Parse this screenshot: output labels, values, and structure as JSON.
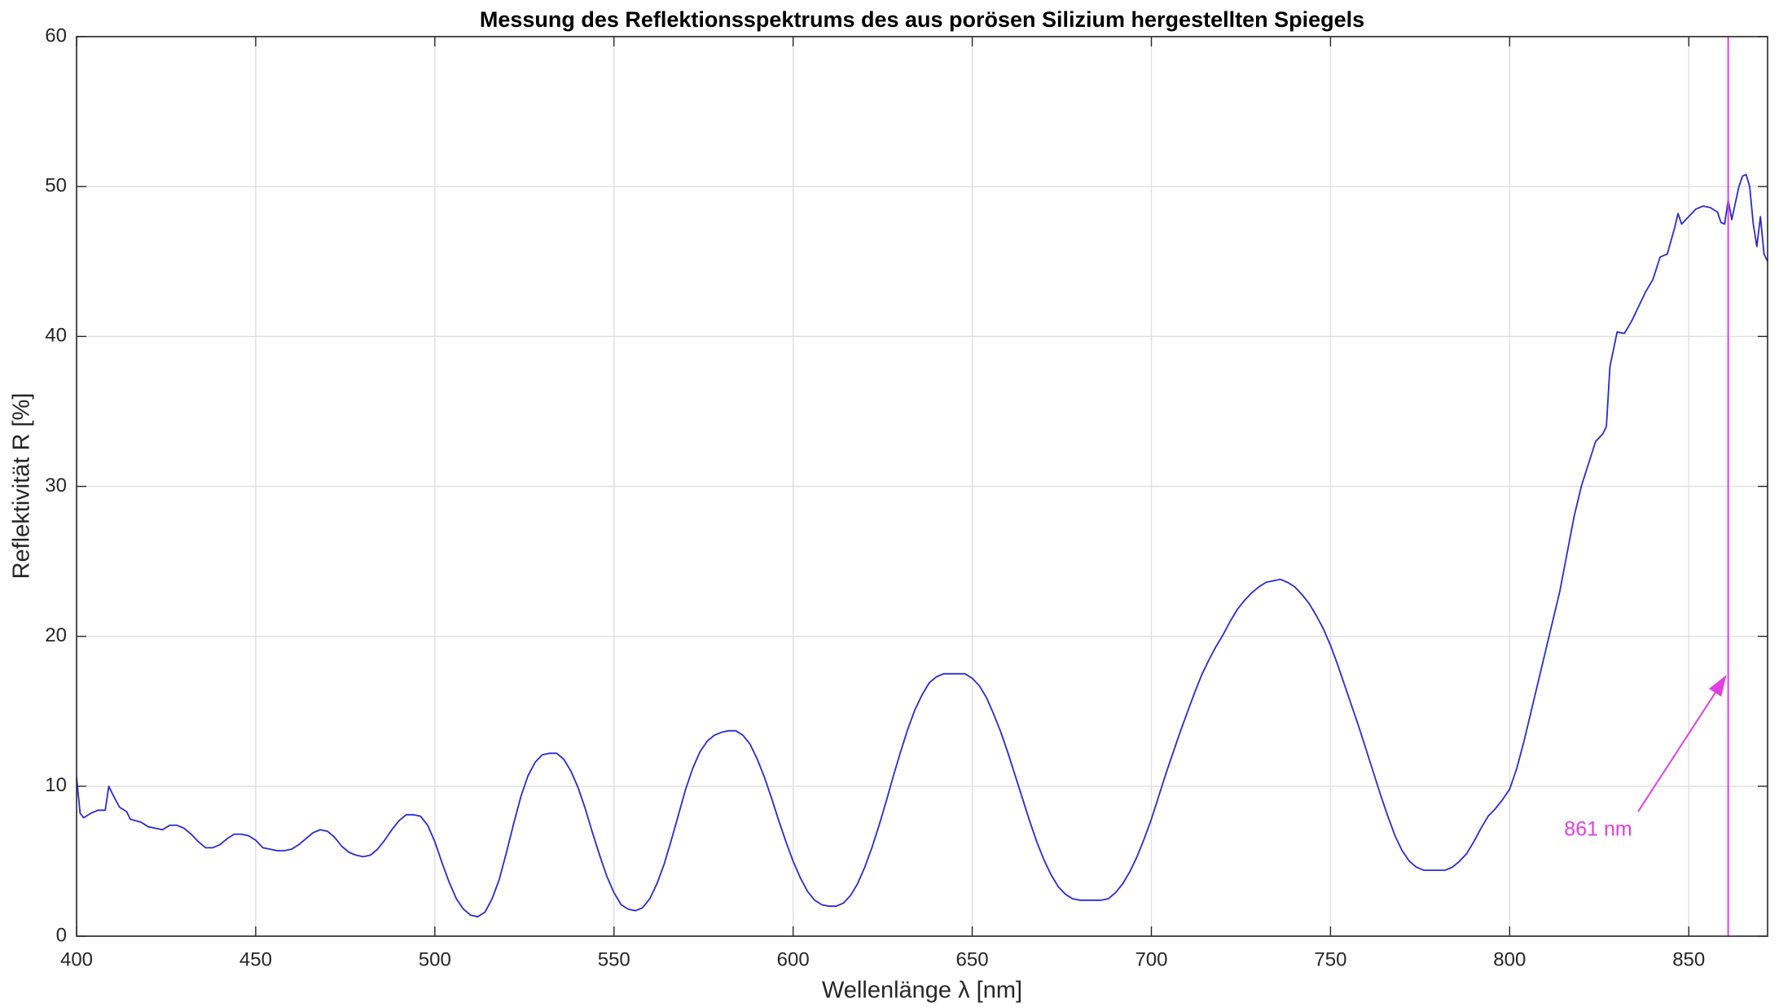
{
  "chart_data": {
    "type": "line",
    "title": "Messung des Reflektionsspektrums des aus porösen Silizium hergestellten Spiegels",
    "x_label": "Wellenlänge λ [nm]",
    "y_label": "Reflektivität R [%]",
    "x": [
      400,
      401,
      402,
      404,
      406,
      408,
      409,
      410,
      412,
      414,
      415,
      418,
      420,
      422,
      424,
      426,
      428,
      430,
      432,
      434,
      436,
      438,
      440,
      442,
      444,
      446,
      448,
      450,
      452,
      454,
      456,
      458,
      460,
      462,
      464,
      466,
      468,
      470,
      472,
      474,
      476,
      478,
      480,
      482,
      484,
      486,
      488,
      490,
      492,
      494,
      496,
      498,
      500,
      502,
      504,
      506,
      508,
      510,
      512,
      514,
      516,
      518,
      520,
      522,
      524,
      526,
      528,
      530,
      532,
      534,
      536,
      538,
      540,
      542,
      544,
      546,
      548,
      550,
      552,
      554,
      556,
      558,
      560,
      562,
      564,
      566,
      568,
      570,
      572,
      574,
      576,
      578,
      580,
      582,
      584,
      586,
      588,
      590,
      592,
      594,
      596,
      598,
      600,
      602,
      604,
      606,
      608,
      610,
      612,
      614,
      616,
      618,
      620,
      622,
      624,
      626,
      628,
      630,
      632,
      634,
      636,
      638,
      640,
      642,
      644,
      646,
      648,
      650,
      652,
      654,
      656,
      658,
      660,
      662,
      664,
      666,
      668,
      670,
      672,
      674,
      676,
      678,
      680,
      682,
      684,
      686,
      688,
      690,
      692,
      694,
      696,
      698,
      700,
      702,
      704,
      706,
      708,
      710,
      712,
      714,
      716,
      718,
      720,
      722,
      724,
      726,
      728,
      730,
      732,
      734,
      736,
      738,
      740,
      742,
      744,
      746,
      748,
      750,
      752,
      754,
      756,
      758,
      760,
      762,
      764,
      766,
      768,
      770,
      772,
      774,
      776,
      778,
      780,
      782,
      784,
      786,
      788,
      790,
      792,
      794,
      796,
      798,
      800,
      802,
      804,
      806,
      808,
      810,
      812,
      814,
      816,
      818,
      820,
      822,
      824,
      826,
      827,
      828,
      830,
      832,
      834,
      836,
      838,
      840,
      842,
      844,
      846,
      847,
      848,
      850,
      852,
      854,
      856,
      858,
      859,
      860,
      861,
      862,
      864,
      865,
      866,
      867,
      868,
      869,
      870,
      871,
      872
    ],
    "series": [
      {
        "name": "R",
        "color": "#2a2ad0",
        "values": [
          10.6,
          8.2,
          7.9,
          8.2,
          8.4,
          8.4,
          10.0,
          9.5,
          8.6,
          8.3,
          7.8,
          7.6,
          7.3,
          7.2,
          7.1,
          7.4,
          7.4,
          7.2,
          6.8,
          6.3,
          5.9,
          5.9,
          6.1,
          6.5,
          6.8,
          6.8,
          6.7,
          6.4,
          5.9,
          5.8,
          5.7,
          5.7,
          5.8,
          6.1,
          6.5,
          6.9,
          7.1,
          7.0,
          6.6,
          6.0,
          5.6,
          5.4,
          5.3,
          5.4,
          5.8,
          6.4,
          7.1,
          7.7,
          8.1,
          8.1,
          8.0,
          7.4,
          6.3,
          4.9,
          3.6,
          2.5,
          1.8,
          1.4,
          1.3,
          1.6,
          2.5,
          3.8,
          5.6,
          7.5,
          9.3,
          10.7,
          11.6,
          12.1,
          12.2,
          12.2,
          11.8,
          11.0,
          9.9,
          8.5,
          6.9,
          5.4,
          4.0,
          2.9,
          2.1,
          1.8,
          1.7,
          1.9,
          2.5,
          3.5,
          4.8,
          6.4,
          8.1,
          9.8,
          11.2,
          12.3,
          13.0,
          13.4,
          13.6,
          13.7,
          13.7,
          13.4,
          12.8,
          11.8,
          10.6,
          9.2,
          7.7,
          6.3,
          5.0,
          3.9,
          3.0,
          2.4,
          2.1,
          2.0,
          2.0,
          2.2,
          2.7,
          3.5,
          4.6,
          5.9,
          7.4,
          9.0,
          10.7,
          12.3,
          13.8,
          15.1,
          16.1,
          16.9,
          17.3,
          17.5,
          17.5,
          17.5,
          17.5,
          17.2,
          16.7,
          15.9,
          14.8,
          13.6,
          12.2,
          10.7,
          9.2,
          7.7,
          6.3,
          5.1,
          4.1,
          3.3,
          2.8,
          2.5,
          2.4,
          2.4,
          2.4,
          2.4,
          2.5,
          2.9,
          3.5,
          4.3,
          5.3,
          6.5,
          7.8,
          9.3,
          10.8,
          12.2,
          13.6,
          14.9,
          16.2,
          17.4,
          18.4,
          19.3,
          20.1,
          21.0,
          21.8,
          22.4,
          22.9,
          23.3,
          23.6,
          23.7,
          23.8,
          23.6,
          23.3,
          22.8,
          22.2,
          21.4,
          20.5,
          19.4,
          18.1,
          16.7,
          15.3,
          13.9,
          12.4,
          10.9,
          9.4,
          8.0,
          6.7,
          5.7,
          5.0,
          4.6,
          4.4,
          4.4,
          4.4,
          4.4,
          4.6,
          5.0,
          5.5,
          6.3,
          7.2,
          8.0,
          8.5,
          9.1,
          9.8,
          11.2,
          13.0,
          15.0,
          17.0,
          19.0,
          21.0,
          23.0,
          25.5,
          28.0,
          30.0,
          31.5,
          33.0,
          33.5,
          34.0,
          38.0,
          40.3,
          40.2,
          41.0,
          42.0,
          43.0,
          43.8,
          45.3,
          45.5,
          47.2,
          48.2,
          47.5,
          48.0,
          48.5,
          48.7,
          48.6,
          48.3,
          47.6,
          47.5,
          49.1,
          47.8,
          50.0,
          50.7,
          50.8,
          50.0,
          47.5,
          46.0,
          48.0,
          45.5,
          45.0
        ]
      }
    ],
    "xlim": [
      400,
      872
    ],
    "xticks": [
      400,
      450,
      500,
      550,
      600,
      650,
      700,
      750,
      800,
      850
    ],
    "ylim": [
      0,
      60
    ],
    "yticks": [
      0,
      10,
      20,
      30,
      40,
      50,
      60
    ],
    "grid": true,
    "vline": {
      "x": 861,
      "color": "#e040e0"
    },
    "annotations": [
      {
        "text": "861 nm"
      }
    ]
  }
}
